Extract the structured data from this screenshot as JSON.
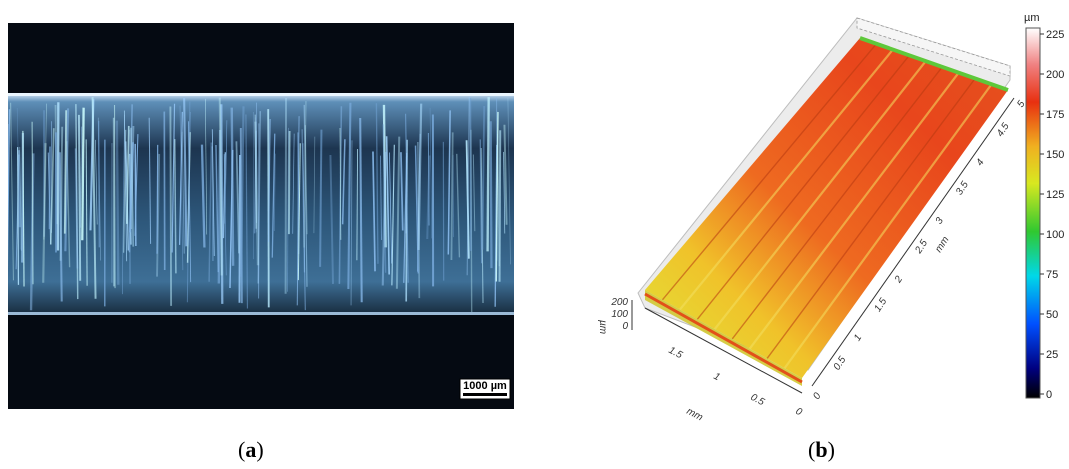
{
  "panel_a": {
    "caption_letter": "a",
    "scale_bar_label": "1000 µm"
  },
  "panel_b": {
    "caption_letter": "b",
    "colorbar_unit": "µm",
    "colorbar_ticks": [
      "225",
      "200",
      "175",
      "150",
      "125",
      "100",
      "75",
      "50",
      "25",
      "0"
    ],
    "axis_z_unit": "µm",
    "axis_z_ticks": [
      "200",
      "100",
      "0"
    ],
    "axis_x_unit": "mm",
    "axis_x_ticks": [
      "1.5",
      "1",
      "0.5",
      "0"
    ],
    "axis_y_unit": "mm",
    "axis_y_ticks": [
      "0",
      "0.5",
      "1",
      "1.5",
      "2",
      "2.5",
      "3",
      "3.5",
      "4",
      "4.5",
      "5"
    ]
  },
  "colors": {
    "background_dark": "#050a12",
    "fiber_blue": "#8fc3e6",
    "surface_red": "#e8461c",
    "surface_yellow": "#e6e01e",
    "surface_green": "#5ec83a"
  }
}
